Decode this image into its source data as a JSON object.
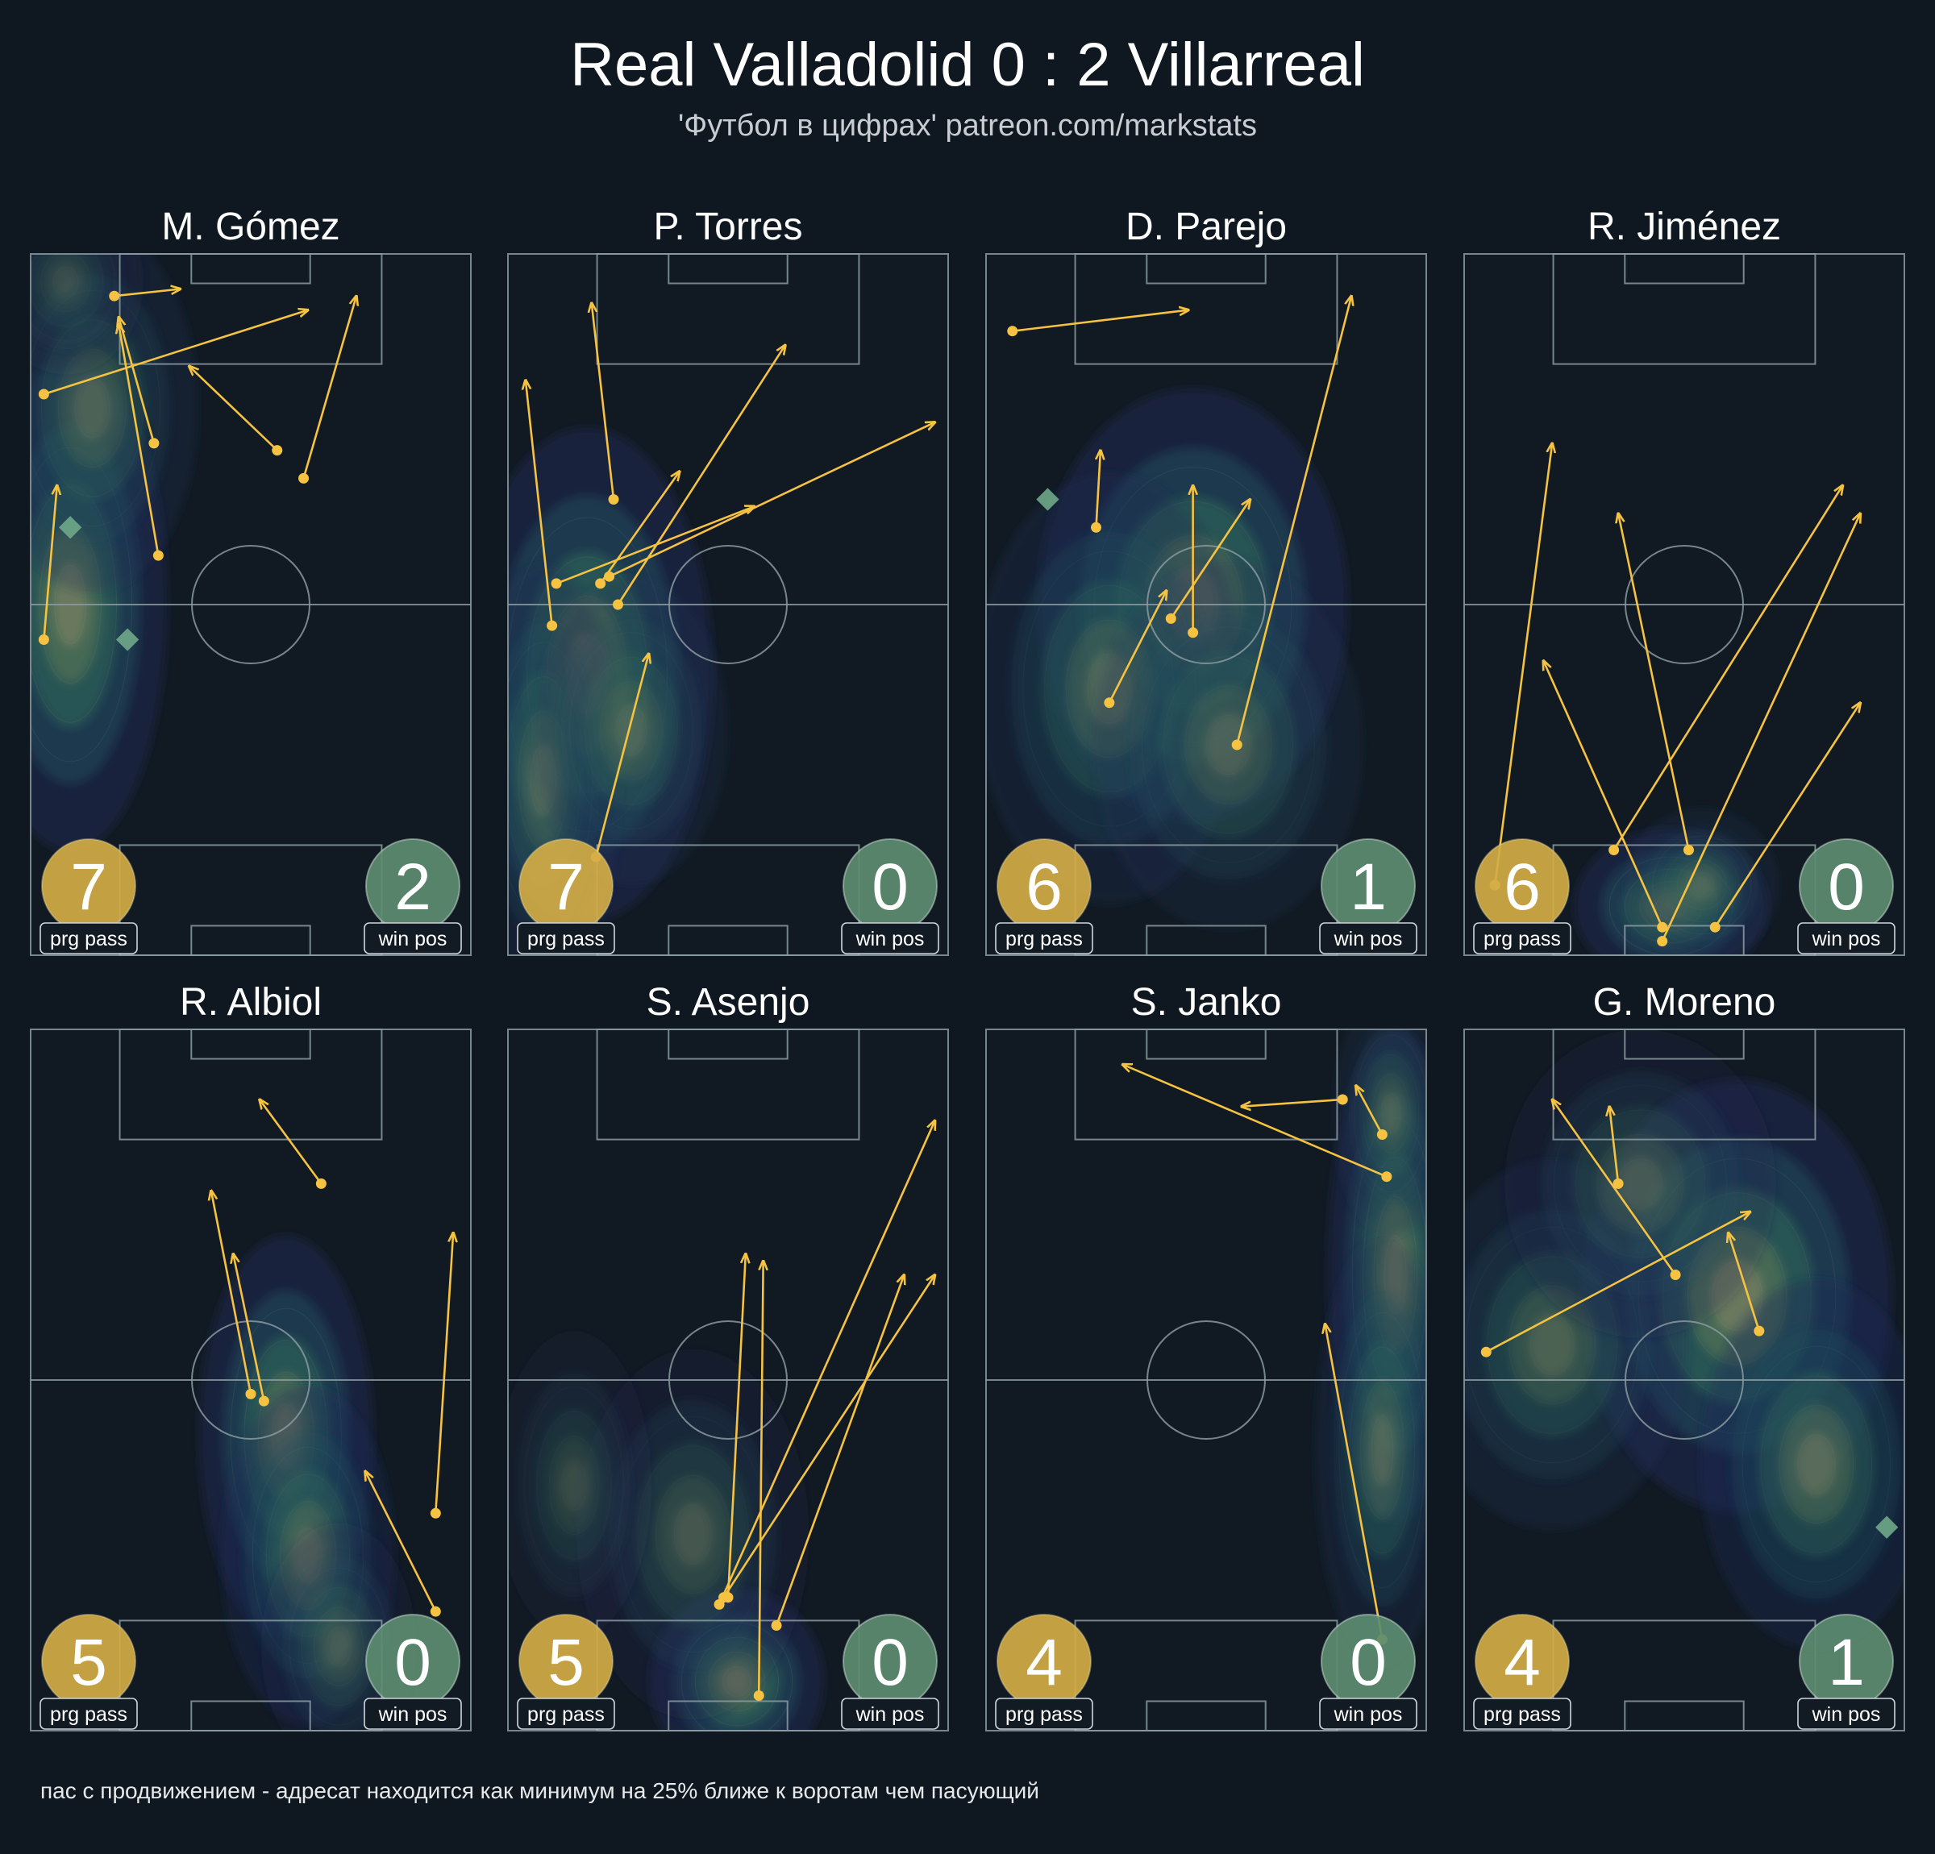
{
  "header": {
    "title": "Real Valladolid 0 : 2 Villarreal",
    "subtitle": "'Футбол в цифрах' patreon.com/markstats"
  },
  "footnote": "пас с продвижением - адресат находится как минимум на 25% ближе к воротам чем пасующий",
  "colors": {
    "background": "#0f1820",
    "pitch_line": "#8a9aa0",
    "pass_arrow": "#f5c242",
    "prg_badge": "#d2ac45",
    "win_badge": "#5c8c70",
    "win_marker": "#6fa88a"
  },
  "labels": {
    "prg": "prg pass",
    "win": "win pos"
  },
  "chart_data": [
    {
      "type": "scatter",
      "title": "M. Gómez",
      "prg_pass": "7",
      "win_pos": "2",
      "xlim": [
        0,
        100
      ],
      "ylim": [
        0,
        100
      ],
      "passes": [
        {
          "from": [
            3,
            45
          ],
          "to": [
            6,
            67
          ]
        },
        {
          "from": [
            3,
            80
          ],
          "to": [
            63,
            92
          ]
        },
        {
          "from": [
            19,
            94
          ],
          "to": [
            34,
            95
          ]
        },
        {
          "from": [
            28,
            73
          ],
          "to": [
            20,
            91
          ]
        },
        {
          "from": [
            29,
            57
          ],
          "to": [
            20,
            90
          ]
        },
        {
          "from": [
            56,
            72
          ],
          "to": [
            36,
            84
          ]
        },
        {
          "from": [
            62,
            68
          ],
          "to": [
            74,
            94
          ]
        }
      ],
      "win_positions": [
        [
          9,
          61
        ],
        [
          22,
          45
        ]
      ],
      "density": [
        {
          "x": 9,
          "y": 50,
          "sx": 10,
          "sy": 16,
          "w": 1.0
        },
        {
          "x": 14,
          "y": 78,
          "sx": 11,
          "sy": 12,
          "w": 0.55
        },
        {
          "x": 8,
          "y": 96,
          "sx": 8,
          "sy": 6,
          "w": 0.35
        }
      ]
    },
    {
      "type": "scatter",
      "title": "P. Torres",
      "prg_pass": "7",
      "win_pos": "0",
      "xlim": [
        0,
        100
      ],
      "ylim": [
        0,
        100
      ],
      "passes": [
        {
          "from": [
            10,
            47
          ],
          "to": [
            4,
            82
          ]
        },
        {
          "from": [
            24,
            65
          ],
          "to": [
            19,
            93
          ]
        },
        {
          "from": [
            11,
            53
          ],
          "to": [
            56,
            64
          ]
        },
        {
          "from": [
            21,
            53
          ],
          "to": [
            39,
            69
          ]
        },
        {
          "from": [
            23,
            54
          ],
          "to": [
            97,
            76
          ]
        },
        {
          "from": [
            25,
            50
          ],
          "to": [
            63,
            87
          ]
        },
        {
          "from": [
            20,
            14
          ],
          "to": [
            32,
            43
          ]
        }
      ],
      "win_positions": [],
      "density": [
        {
          "x": 18,
          "y": 40,
          "sx": 13,
          "sy": 16,
          "w": 1.0
        },
        {
          "x": 8,
          "y": 25,
          "sx": 8,
          "sy": 14,
          "w": 0.6
        },
        {
          "x": 28,
          "y": 32,
          "sx": 10,
          "sy": 10,
          "w": 0.5
        }
      ]
    },
    {
      "type": "scatter",
      "title": "D. Parejo",
      "prg_pass": "6",
      "win_pos": "1",
      "xlim": [
        0,
        100
      ],
      "ylim": [
        0,
        100
      ],
      "passes": [
        {
          "from": [
            6,
            89
          ],
          "to": [
            46,
            92
          ]
        },
        {
          "from": [
            25,
            61
          ],
          "to": [
            26,
            72
          ]
        },
        {
          "from": [
            28,
            36
          ],
          "to": [
            41,
            52
          ]
        },
        {
          "from": [
            42,
            48
          ],
          "to": [
            60,
            65
          ]
        },
        {
          "from": [
            47,
            46
          ],
          "to": [
            47,
            67
          ]
        },
        {
          "from": [
            57,
            30
          ],
          "to": [
            83,
            94
          ]
        }
      ],
      "win_positions": [
        [
          14,
          65
        ]
      ],
      "density": [
        {
          "x": 47,
          "y": 50,
          "sx": 16,
          "sy": 14,
          "w": 1.0
        },
        {
          "x": 28,
          "y": 38,
          "sx": 14,
          "sy": 14,
          "w": 0.6
        },
        {
          "x": 55,
          "y": 30,
          "sx": 14,
          "sy": 12,
          "w": 0.5
        }
      ]
    },
    {
      "type": "scatter",
      "title": "R. Jiménez",
      "prg_pass": "6",
      "win_pos": "0",
      "xlim": [
        0,
        100
      ],
      "ylim": [
        0,
        100
      ],
      "passes": [
        {
          "from": [
            7,
            10
          ],
          "to": [
            20,
            73
          ]
        },
        {
          "from": [
            34,
            15
          ],
          "to": [
            86,
            67
          ]
        },
        {
          "from": [
            45,
            2
          ],
          "to": [
            90,
            63
          ]
        },
        {
          "from": [
            51,
            15
          ],
          "to": [
            35,
            63
          ]
        },
        {
          "from": [
            45,
            4
          ],
          "to": [
            18,
            42
          ]
        },
        {
          "from": [
            57,
            4
          ],
          "to": [
            90,
            36
          ]
        }
      ],
      "win_positions": [],
      "density": [
        {
          "x": 47,
          "y": 7,
          "sx": 10,
          "sy": 5,
          "w": 1.0
        },
        {
          "x": 54,
          "y": 10,
          "sx": 8,
          "sy": 5,
          "w": 0.5
        }
      ]
    },
    {
      "type": "scatter",
      "title": "R. Albiol",
      "prg_pass": "5",
      "win_pos": "0",
      "xlim": [
        0,
        100
      ],
      "ylim": [
        0,
        100
      ],
      "passes": [
        {
          "from": [
            66,
            78
          ],
          "to": [
            52,
            90
          ]
        },
        {
          "from": [
            50,
            48
          ],
          "to": [
            41,
            77
          ]
        },
        {
          "from": [
            53,
            47
          ],
          "to": [
            46,
            68
          ]
        },
        {
          "from": [
            92,
            17
          ],
          "to": [
            76,
            37
          ]
        },
        {
          "from": [
            92,
            31
          ],
          "to": [
            96,
            71
          ]
        }
      ],
      "win_positions": [],
      "density": [
        {
          "x": 58,
          "y": 42,
          "sx": 9,
          "sy": 13,
          "w": 1.0
        },
        {
          "x": 63,
          "y": 25,
          "sx": 9,
          "sy": 11,
          "w": 0.7
        },
        {
          "x": 70,
          "y": 12,
          "sx": 8,
          "sy": 8,
          "w": 0.45
        }
      ]
    },
    {
      "type": "scatter",
      "title": "S. Asenjo",
      "prg_pass": "5",
      "win_pos": "0",
      "xlim": [
        0,
        100
      ],
      "ylim": [
        0,
        100
      ],
      "passes": [
        {
          "from": [
            57,
            5
          ],
          "to": [
            58,
            67
          ]
        },
        {
          "from": [
            50,
            19
          ],
          "to": [
            54,
            68
          ]
        },
        {
          "from": [
            48,
            18
          ],
          "to": [
            97,
            87
          ]
        },
        {
          "from": [
            61,
            15
          ],
          "to": [
            90,
            65
          ]
        },
        {
          "from": [
            49,
            19
          ],
          "to": [
            97,
            65
          ]
        }
      ],
      "win_positions": [],
      "density": [
        {
          "x": 52,
          "y": 7,
          "sx": 9,
          "sy": 6,
          "w": 1.0
        },
        {
          "x": 42,
          "y": 28,
          "sx": 12,
          "sy": 12,
          "w": 0.45
        },
        {
          "x": 15,
          "y": 35,
          "sx": 8,
          "sy": 10,
          "w": 0.35
        }
      ]
    },
    {
      "type": "scatter",
      "title": "S. Janko",
      "prg_pass": "4",
      "win_pos": "0",
      "xlim": [
        0,
        100
      ],
      "ylim": [
        0,
        100
      ],
      "passes": [
        {
          "from": [
            90,
            13
          ],
          "to": [
            77,
            58
          ]
        },
        {
          "from": [
            91,
            79
          ],
          "to": [
            31,
            95
          ]
        },
        {
          "from": [
            81,
            90
          ],
          "to": [
            58,
            89
          ]
        },
        {
          "from": [
            90,
            85
          ],
          "to": [
            84,
            92
          ]
        }
      ],
      "win_positions": [],
      "density": [
        {
          "x": 93,
          "y": 65,
          "sx": 7,
          "sy": 16,
          "w": 1.0
        },
        {
          "x": 90,
          "y": 40,
          "sx": 7,
          "sy": 14,
          "w": 0.6
        },
        {
          "x": 92,
          "y": 88,
          "sx": 6,
          "sy": 8,
          "w": 0.5
        }
      ]
    },
    {
      "type": "scatter",
      "title": "G. Moreno",
      "prg_pass": "4",
      "win_pos": "1",
      "xlim": [
        0,
        100
      ],
      "ylim": [
        0,
        100
      ],
      "passes": [
        {
          "from": [
            5,
            54
          ],
          "to": [
            65,
            74
          ]
        },
        {
          "from": [
            67,
            57
          ],
          "to": [
            60,
            71
          ]
        },
        {
          "from": [
            48,
            65
          ],
          "to": [
            20,
            90
          ]
        },
        {
          "from": [
            35,
            78
          ],
          "to": [
            33,
            89
          ]
        }
      ],
      "win_positions": [
        [
          96,
          29
        ]
      ],
      "density": [
        {
          "x": 62,
          "y": 62,
          "sx": 16,
          "sy": 14,
          "w": 1.0
        },
        {
          "x": 80,
          "y": 38,
          "sx": 12,
          "sy": 12,
          "w": 0.7
        },
        {
          "x": 20,
          "y": 55,
          "sx": 14,
          "sy": 12,
          "w": 0.55
        },
        {
          "x": 40,
          "y": 78,
          "sx": 14,
          "sy": 10,
          "w": 0.45
        }
      ]
    }
  ]
}
